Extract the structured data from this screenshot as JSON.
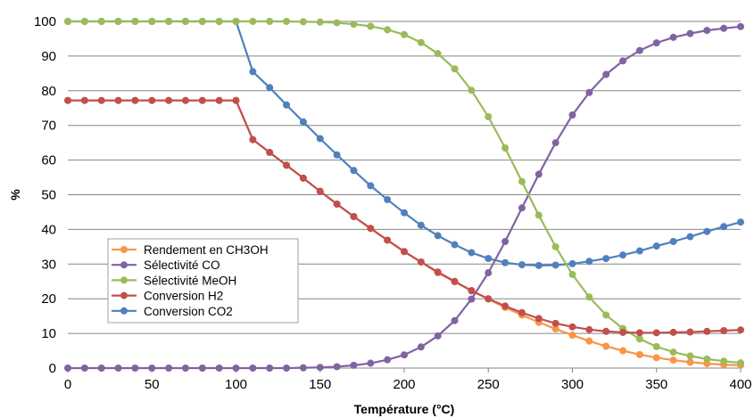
{
  "chart_data": {
    "type": "line",
    "title": "",
    "xlabel": "Température (°C)",
    "ylabel": "%",
    "xlim": [
      0,
      400
    ],
    "ylim": [
      0,
      100
    ],
    "xticks": [
      0,
      50,
      100,
      150,
      200,
      250,
      300,
      350,
      400
    ],
    "yticks": [
      0,
      10,
      20,
      30,
      40,
      50,
      60,
      70,
      80,
      90,
      100
    ],
    "grid": "horizontal",
    "legend_position": "inside-lower-left",
    "x": [
      0,
      10,
      20,
      30,
      40,
      50,
      60,
      70,
      80,
      90,
      100,
      110,
      120,
      130,
      140,
      150,
      160,
      170,
      180,
      190,
      200,
      210,
      220,
      230,
      240,
      250,
      260,
      270,
      280,
      290,
      300,
      310,
      320,
      330,
      340,
      350,
      360,
      370,
      380,
      390,
      400
    ],
    "series": [
      {
        "name": "Rendement en CH3OH",
        "color": "#f79646",
        "values": [
          77.2,
          77.2,
          77.2,
          77.2,
          77.2,
          77.2,
          77.2,
          77.2,
          77.2,
          77.2,
          77.2,
          65.9,
          62.2,
          58.5,
          54.8,
          51.0,
          47.3,
          43.7,
          40.3,
          36.9,
          33.6,
          30.6,
          27.5,
          24.9,
          22.4,
          19.9,
          17.5,
          15.3,
          13.2,
          11.3,
          9.5,
          7.8,
          6.3,
          5.0,
          3.9,
          3.0,
          2.3,
          1.7,
          1.3,
          1.0,
          0.8
        ]
      },
      {
        "name": "Sélectivité CO",
        "color": "#8064a2",
        "values": [
          0,
          0,
          0,
          0,
          0,
          0,
          0,
          0,
          0,
          0,
          0,
          0,
          0,
          0,
          0.1,
          0.2,
          0.4,
          0.8,
          1.4,
          2.4,
          3.8,
          6.1,
          9.3,
          13.7,
          19.9,
          27.5,
          36.5,
          46.2,
          55.9,
          65.0,
          73.0,
          79.5,
          84.7,
          88.6,
          91.6,
          93.8,
          95.4,
          96.5,
          97.4,
          98.0,
          98.5
        ]
      },
      {
        "name": "Sélectivité MeOH",
        "color": "#9bbb59",
        "values": [
          100,
          100,
          100,
          100,
          100,
          100,
          100,
          100,
          100,
          100,
          100,
          100,
          100,
          100,
          99.9,
          99.8,
          99.6,
          99.2,
          98.6,
          97.6,
          96.2,
          93.9,
          90.7,
          86.3,
          80.1,
          72.5,
          63.5,
          53.8,
          44.1,
          35.0,
          27.0,
          20.5,
          15.3,
          11.4,
          8.4,
          6.2,
          4.6,
          3.5,
          2.6,
          2.0,
          1.5
        ]
      },
      {
        "name": "Conversion H2",
        "color": "#c0504d",
        "values": [
          77.2,
          77.2,
          77.2,
          77.2,
          77.2,
          77.2,
          77.2,
          77.2,
          77.2,
          77.2,
          77.2,
          65.9,
          62.2,
          58.5,
          54.8,
          51.0,
          47.3,
          43.7,
          40.3,
          36.9,
          33.6,
          30.6,
          27.7,
          25.0,
          22.3,
          20.0,
          17.9,
          16.0,
          14.3,
          12.9,
          11.9,
          11.1,
          10.6,
          10.3,
          10.2,
          10.2,
          10.3,
          10.4,
          10.6,
          10.8,
          11.0
        ]
      },
      {
        "name": "Conversion CO2",
        "color": "#4f81bd",
        "values": [
          100,
          100,
          100,
          100,
          100,
          100,
          100,
          100,
          100,
          100,
          100,
          85.5,
          80.9,
          75.9,
          71.0,
          66.2,
          61.5,
          57.0,
          52.6,
          48.6,
          44.8,
          41.2,
          38.2,
          35.6,
          33.3,
          31.6,
          30.4,
          29.8,
          29.6,
          29.7,
          30.1,
          30.8,
          31.6,
          32.6,
          33.8,
          35.2,
          36.5,
          37.9,
          39.4,
          40.8,
          42.1
        ]
      }
    ]
  }
}
